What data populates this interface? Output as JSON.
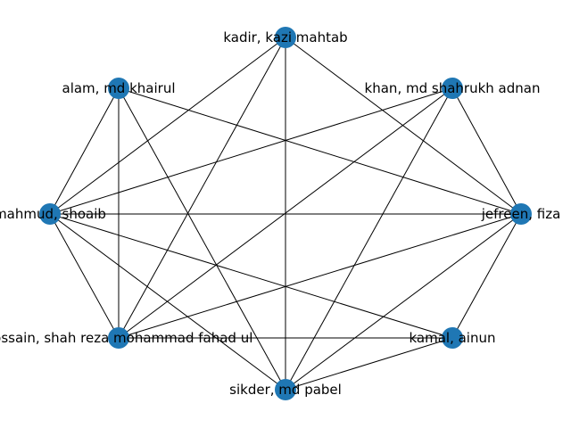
{
  "graph": {
    "node_color": "#1f77b4",
    "edge_color": "#000000",
    "nodes": [
      {
        "id": "kadir",
        "label": "kadir, kazi mahtab"
      },
      {
        "id": "khan",
        "label": "khan, md shahrukh adnan"
      },
      {
        "id": "alam",
        "label": "alam, md khairul"
      },
      {
        "id": "mahmud",
        "label": "mahmud, shoaib"
      },
      {
        "id": "jefreen",
        "label": "jefreen, fiza"
      },
      {
        "id": "hossain",
        "label": "hossain, shah reza mohammad fahad ul"
      },
      {
        "id": "kamal",
        "label": "kamal, ainun"
      },
      {
        "id": "sikder",
        "label": "sikder, md pabel"
      }
    ],
    "edges": [
      [
        "kadir",
        "mahmud"
      ],
      [
        "kadir",
        "hossain"
      ],
      [
        "kadir",
        "sikder"
      ],
      [
        "kadir",
        "jefreen"
      ],
      [
        "alam",
        "mahmud"
      ],
      [
        "alam",
        "hossain"
      ],
      [
        "alam",
        "sikder"
      ],
      [
        "alam",
        "jefreen"
      ],
      [
        "khan",
        "mahmud"
      ],
      [
        "khan",
        "hossain"
      ],
      [
        "khan",
        "sikder"
      ],
      [
        "khan",
        "jefreen"
      ],
      [
        "mahmud",
        "jefreen"
      ],
      [
        "mahmud",
        "hossain"
      ],
      [
        "mahmud",
        "sikder"
      ],
      [
        "mahmud",
        "kamal"
      ],
      [
        "hossain",
        "jefreen"
      ],
      [
        "hossain",
        "kamal"
      ],
      [
        "sikder",
        "jefreen"
      ],
      [
        "sikder",
        "kamal"
      ],
      [
        "jefreen",
        "kamal"
      ]
    ]
  }
}
